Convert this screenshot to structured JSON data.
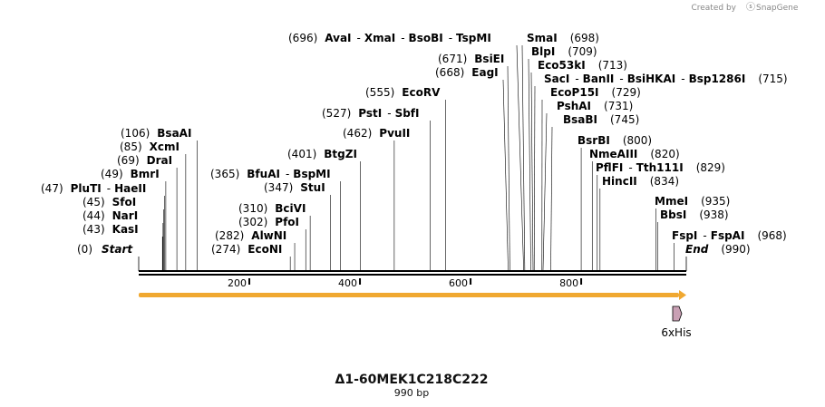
{
  "brand": {
    "created_by": "Created by",
    "app": "SnapGene"
  },
  "map": {
    "title": "Δ1-60MEK1C218C222",
    "length_label": "990 bp",
    "length": 990
  },
  "start_label": {
    "pos": "(0)",
    "name": "Start"
  },
  "end_label": {
    "pos": "(990)",
    "name": "End"
  },
  "ruler": {
    "ticks": [
      200,
      400,
      600,
      800
    ]
  },
  "feature": {
    "name": "6xHis",
    "color": "#c9a0b4",
    "orf_color": "#f0a830"
  },
  "sites": [
    {
      "names": [
        "KasI"
      ],
      "pos": 43
    },
    {
      "names": [
        "NarI"
      ],
      "pos": 44
    },
    {
      "names": [
        "SfoI"
      ],
      "pos": 45
    },
    {
      "names": [
        "PluTI",
        "HaeII"
      ],
      "pos": 47
    },
    {
      "names": [
        "BmrI"
      ],
      "pos": 49
    },
    {
      "names": [
        "DraI"
      ],
      "pos": 69
    },
    {
      "names": [
        "XcmI"
      ],
      "pos": 85
    },
    {
      "names": [
        "BsaAI"
      ],
      "pos": 106
    },
    {
      "names": [
        "EcoNI"
      ],
      "pos": 274
    },
    {
      "names": [
        "AlwNI"
      ],
      "pos": 282
    },
    {
      "names": [
        "PfoI"
      ],
      "pos": 302
    },
    {
      "names": [
        "BciVI"
      ],
      "pos": 310
    },
    {
      "names": [
        "StuI"
      ],
      "pos": 347
    },
    {
      "names": [
        "BfuAI",
        "BspMI"
      ],
      "pos": 365
    },
    {
      "names": [
        "BtgZI"
      ],
      "pos": 401
    },
    {
      "names": [
        "PvuII"
      ],
      "pos": 462
    },
    {
      "names": [
        "PstI",
        "SbfI"
      ],
      "pos": 527
    },
    {
      "names": [
        "EcoRV"
      ],
      "pos": 555
    },
    {
      "names": [
        "EagI"
      ],
      "pos": 668
    },
    {
      "names": [
        "BsiEI"
      ],
      "pos": 671
    },
    {
      "names": [
        "AvaI",
        "XmaI",
        "BsoBI",
        "TspMI"
      ],
      "pos": 696
    },
    {
      "names": [
        "SmaI"
      ],
      "pos": 698
    },
    {
      "names": [
        "BlpI"
      ],
      "pos": 709
    },
    {
      "names": [
        "Eco53kI"
      ],
      "pos": 713
    },
    {
      "names": [
        "SacI",
        "BanII",
        "BsiHKAI",
        "Bsp1286I"
      ],
      "pos": 715
    },
    {
      "names": [
        "EcoP15I"
      ],
      "pos": 729
    },
    {
      "names": [
        "PshAI"
      ],
      "pos": 731
    },
    {
      "names": [
        "BsaBI"
      ],
      "pos": 745
    },
    {
      "names": [
        "BsrBI"
      ],
      "pos": 800
    },
    {
      "names": [
        "NmeAIII"
      ],
      "pos": 820
    },
    {
      "names": [
        "PflFI",
        "Tth111I"
      ],
      "pos": 829
    },
    {
      "names": [
        "HincII"
      ],
      "pos": 834
    },
    {
      "names": [
        "MmeI"
      ],
      "pos": 935
    },
    {
      "names": [
        "BbsI"
      ],
      "pos": 938
    },
    {
      "names": [
        "FspI",
        "FspAI"
      ],
      "pos": 968
    }
  ]
}
